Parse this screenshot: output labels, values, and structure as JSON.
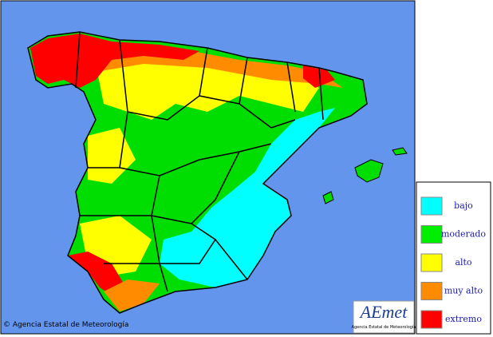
{
  "legend": {
    "items": [
      {
        "label": "bajo",
        "color": "#00ffff"
      },
      {
        "label": "moderado",
        "color": "#00ee00"
      },
      {
        "label": "alto",
        "color": "#ffff00"
      },
      {
        "label": "muy alto",
        "color": "#ff8c00"
      },
      {
        "label": "extremo",
        "color": "#ff0000"
      }
    ]
  },
  "copyright": "© Agencia Estatal de Meteorología",
  "logo": {
    "name": "AEmet",
    "subtitle": "Agencia Estatal de Meteorología"
  }
}
